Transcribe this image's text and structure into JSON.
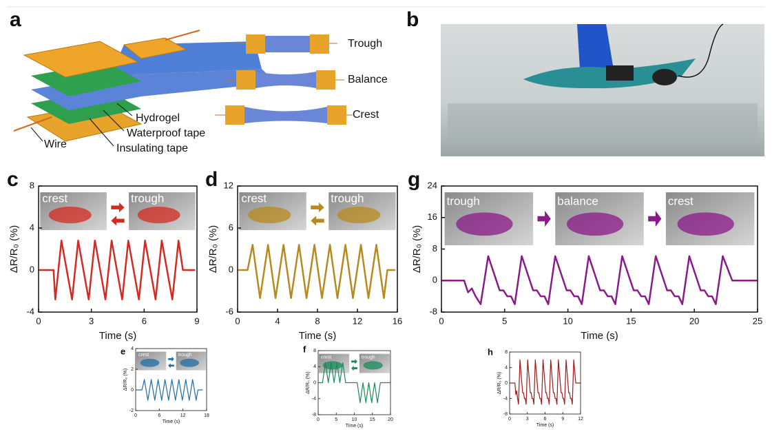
{
  "panel_a": {
    "label": "a",
    "layers": [
      "Hydrogel",
      "Waterproof tape",
      "Insulating tape",
      "Wire"
    ],
    "states": [
      "Trough",
      "Balance",
      "Crest"
    ]
  },
  "panel_b": {
    "label": "b"
  },
  "chart_data": [
    {
      "label": "c",
      "type": "line",
      "insets": [
        "crest",
        "trough"
      ],
      "xlabel": "Time (s)",
      "ylabel": "ΔR/R₀ (%)",
      "color": "#d42a22",
      "xlim": [
        0,
        9
      ],
      "ylim": [
        -4,
        8
      ],
      "xticks": [
        0,
        3,
        6,
        9
      ],
      "yticks": [
        -4,
        0,
        4,
        8
      ],
      "x": [
        0,
        0.85,
        0.95,
        1.3,
        1.9,
        2.25,
        2.85,
        3.2,
        3.8,
        4.15,
        4.75,
        5.1,
        5.7,
        6.05,
        6.65,
        7.0,
        7.6,
        7.95,
        8.2,
        8.9
      ],
      "values": [
        0,
        0,
        -2.8,
        2.8,
        -2.8,
        2.8,
        -2.8,
        2.8,
        -2.8,
        2.8,
        -2.8,
        2.8,
        -2.8,
        2.8,
        -2.8,
        2.8,
        -2.8,
        2.8,
        0,
        0
      ]
    },
    {
      "label": "d",
      "type": "line",
      "insets": [
        "crest",
        "trough"
      ],
      "xlabel": "Time (s)",
      "ylabel": "ΔR/R₀ (%)",
      "color": "#b8891e",
      "xlim": [
        0,
        16
      ],
      "ylim": [
        -6,
        12
      ],
      "xticks": [
        0,
        4,
        8,
        12,
        16
      ],
      "yticks": [
        -6,
        0,
        6,
        12
      ],
      "x": [
        0,
        1.0,
        1.5,
        2.25,
        3.05,
        3.8,
        4.6,
        5.35,
        6.15,
        6.9,
        7.7,
        8.45,
        9.25,
        10.0,
        10.8,
        11.55,
        12.35,
        13.1,
        13.9,
        14.65,
        15.0,
        15.8
      ],
      "values": [
        0,
        0,
        3.6,
        -4,
        3.6,
        -4,
        3.6,
        -4,
        3.6,
        -4,
        3.6,
        -4,
        3.6,
        -4,
        3.6,
        -4,
        3.6,
        -4,
        3.6,
        -4,
        0,
        0
      ]
    },
    {
      "label": "g",
      "type": "line",
      "insets": [
        "trough",
        "balance",
        "crest"
      ],
      "xlabel": "Time (s)",
      "ylabel": "ΔR/R₀ (%)",
      "color": "#8a1a88",
      "xlim": [
        0,
        25
      ],
      "ylim": [
        -8,
        24
      ],
      "xticks": [
        0,
        5,
        10,
        15,
        20,
        25
      ],
      "yticks": [
        -8,
        0,
        8,
        16,
        24
      ],
      "x": [
        0,
        1.8,
        2.1,
        2.4,
        2.7,
        3.1,
        3.7,
        4.6,
        4.9,
        5.2,
        5.5,
        5.8,
        6.35,
        7.25,
        7.55,
        7.85,
        8.15,
        8.45,
        9.0,
        9.9,
        10.2,
        10.5,
        10.8,
        11.1,
        11.65,
        12.55,
        12.85,
        13.15,
        13.45,
        13.75,
        14.3,
        15.2,
        15.5,
        15.8,
        16.1,
        16.4,
        16.95,
        17.85,
        18.15,
        18.45,
        18.75,
        19.05,
        19.6,
        20.5,
        20.8,
        21.1,
        21.4,
        21.7,
        22.25,
        23.0,
        25
      ],
      "values": [
        0,
        0,
        -3,
        -2,
        -4,
        -6,
        6.2,
        -2.5,
        -2.5,
        -4,
        -4,
        -6,
        6.2,
        -2.5,
        -2.5,
        -4,
        -4,
        -6,
        6.2,
        -2.5,
        -2.5,
        -4,
        -4,
        -6,
        6.2,
        -2.5,
        -2.5,
        -4,
        -4,
        -6,
        6.2,
        -2.5,
        -2.5,
        -4,
        -4,
        -6,
        6.2,
        -2.5,
        -2.5,
        -4,
        -4,
        -6,
        6.2,
        -2.5,
        -2.5,
        -4,
        -4,
        -6,
        6.2,
        0,
        0
      ]
    },
    {
      "label": "e",
      "type": "line",
      "insets": [
        "crest",
        "trough"
      ],
      "xlabel": "Time (s)",
      "ylabel": "ΔR/R₀ (%)",
      "color": "#1f6ea8",
      "xlim": [
        0,
        18
      ],
      "ylim": [
        -2,
        4
      ],
      "xticks": [
        0,
        6,
        12,
        18
      ],
      "yticks": [
        -2,
        0,
        2,
        4
      ],
      "x": [
        0,
        1.6,
        2.2,
        3.1,
        3.95,
        4.85,
        5.7,
        6.6,
        7.45,
        8.35,
        9.2,
        10.1,
        10.95,
        11.85,
        12.7,
        13.6,
        14.45,
        15.35,
        15.8,
        17
      ],
      "values": [
        0,
        0,
        1,
        -1,
        1,
        -1,
        1,
        -1,
        1,
        -1,
        1,
        -1,
        1,
        -1,
        1,
        -1,
        1,
        -1,
        0,
        0
      ]
    },
    {
      "label": "f",
      "type": "line",
      "insets": [
        "crest",
        "trough"
      ],
      "xlabel": "Time (s)",
      "ylabel": "ΔR/R₀ (%)",
      "color": "#1a8a5c",
      "xlim": [
        0,
        20
      ],
      "ylim": [
        -8,
        8
      ],
      "xticks": [
        0,
        5,
        10,
        15,
        20
      ],
      "yticks": [
        -8,
        -4,
        0,
        4,
        8
      ],
      "x": [
        0,
        1.2,
        2.0,
        2.8,
        3.6,
        4.4,
        5.2,
        6.0,
        6.8,
        7.6,
        10.8,
        11.6,
        12.4,
        13.2,
        14.0,
        14.8,
        15.6,
        16.4,
        17.2,
        20
      ],
      "values": [
        0,
        0,
        5,
        0,
        5,
        0,
        5,
        0,
        5,
        0,
        0,
        -5,
        0,
        -5,
        0,
        -5,
        0,
        -5,
        0,
        0
      ]
    },
    {
      "label": "h",
      "type": "line",
      "insets": [],
      "xlabel": "Time (s)",
      "ylabel": "ΔR/R₀ (%)",
      "color": "#a01a1a",
      "xlim": [
        0,
        12
      ],
      "ylim": [
        -8,
        8
      ],
      "xticks": [
        0,
        3,
        6,
        9,
        12
      ],
      "yticks": [
        -8,
        -4,
        0,
        4,
        8
      ],
      "x": [
        0,
        0.9,
        1.05,
        1.2,
        1.35,
        1.5,
        1.75,
        2.2,
        2.35,
        2.5,
        2.65,
        2.8,
        3.05,
        3.5,
        3.65,
        3.8,
        3.95,
        4.1,
        4.35,
        4.8,
        4.95,
        5.1,
        5.25,
        5.4,
        5.65,
        6.1,
        6.25,
        6.4,
        6.55,
        6.7,
        6.95,
        7.4,
        7.55,
        7.7,
        7.85,
        8.0,
        8.25,
        8.7,
        8.85,
        9.0,
        9.15,
        9.3,
        9.55,
        10.0,
        10.15,
        10.3,
        10.45,
        10.6,
        10.85,
        11.2,
        12
      ],
      "values": [
        0,
        0,
        -3,
        -2,
        -4,
        -5.5,
        6,
        -2.5,
        -2.5,
        -4,
        -4,
        -5.5,
        6,
        -2.5,
        -2.5,
        -4,
        -4,
        -5.5,
        6,
        -2.5,
        -2.5,
        -4,
        -4,
        -5.5,
        6,
        -2.5,
        -2.5,
        -4,
        -4,
        -5.5,
        6,
        -2.5,
        -2.5,
        -4,
        -4,
        -5.5,
        6,
        -2.5,
        -2.5,
        -4,
        -4,
        -5.5,
        6,
        -2.5,
        -2.5,
        -4,
        -4,
        -5.5,
        6,
        0,
        0
      ]
    }
  ]
}
